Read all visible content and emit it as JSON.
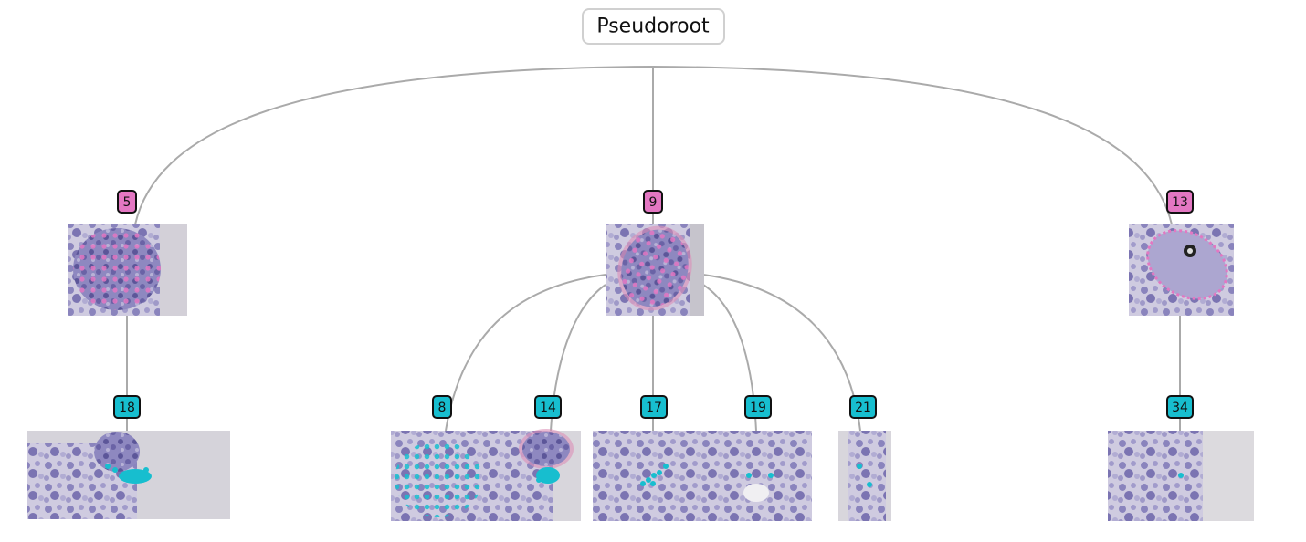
{
  "root": {
    "label": "Pseudoroot"
  },
  "colors": {
    "level1": "#e377c2",
    "level2": "#17becf",
    "edge": "#aaaaaa",
    "tissue_light": "#c9c4d8",
    "tissue_dark": "#5a5aa0",
    "tissue_bg": "#d8d6dc"
  },
  "nodes": [
    {
      "id": "5",
      "level": 1,
      "parent": "root"
    },
    {
      "id": "9",
      "level": 1,
      "parent": "root"
    },
    {
      "id": "13",
      "level": 1,
      "parent": "root"
    },
    {
      "id": "18",
      "level": 2,
      "parent": "5"
    },
    {
      "id": "8",
      "level": 2,
      "parent": "9"
    },
    {
      "id": "14",
      "level": 2,
      "parent": "9"
    },
    {
      "id": "17",
      "level": 2,
      "parent": "9"
    },
    {
      "id": "19",
      "level": 2,
      "parent": "9"
    },
    {
      "id": "21",
      "level": 2,
      "parent": "9"
    },
    {
      "id": "34",
      "level": 2,
      "parent": "13"
    }
  ]
}
